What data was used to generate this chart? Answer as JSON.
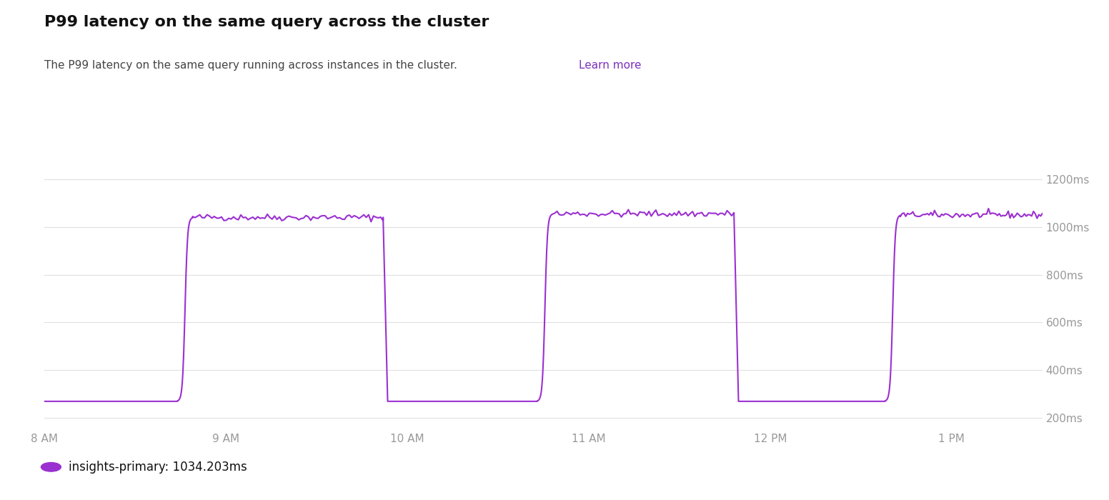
{
  "title": "P99 latency on the same query across the cluster",
  "subtitle": "The P99 latency on the same query running across instances in the cluster.",
  "subtitle_link": "Learn more",
  "legend_label": "insights-primary: 1034.203ms",
  "line_color": "#9b30d0",
  "subtitle_link_color": "#7b2fbe",
  "background_color": "#ffffff",
  "grid_color": "#e0e0e0",
  "tick_color": "#999999",
  "title_color": "#111111",
  "subtitle_color": "#444444",
  "legend_dot_color": "#9b30d0",
  "x_tick_labels": [
    "8 AM",
    "9 AM",
    "10 AM",
    "11 AM",
    "12 PM",
    "1 PM"
  ],
  "x_tick_positions": [
    0,
    60,
    120,
    180,
    240,
    300
  ],
  "y_tick_labels": [
    "200ms",
    "400ms",
    "600ms",
    "800ms",
    "1000ms",
    "1200ms"
  ],
  "y_tick_values": [
    200,
    400,
    600,
    800,
    1000,
    1200
  ],
  "ylim": [
    150,
    1280
  ],
  "xlim": [
    0,
    330
  ]
}
